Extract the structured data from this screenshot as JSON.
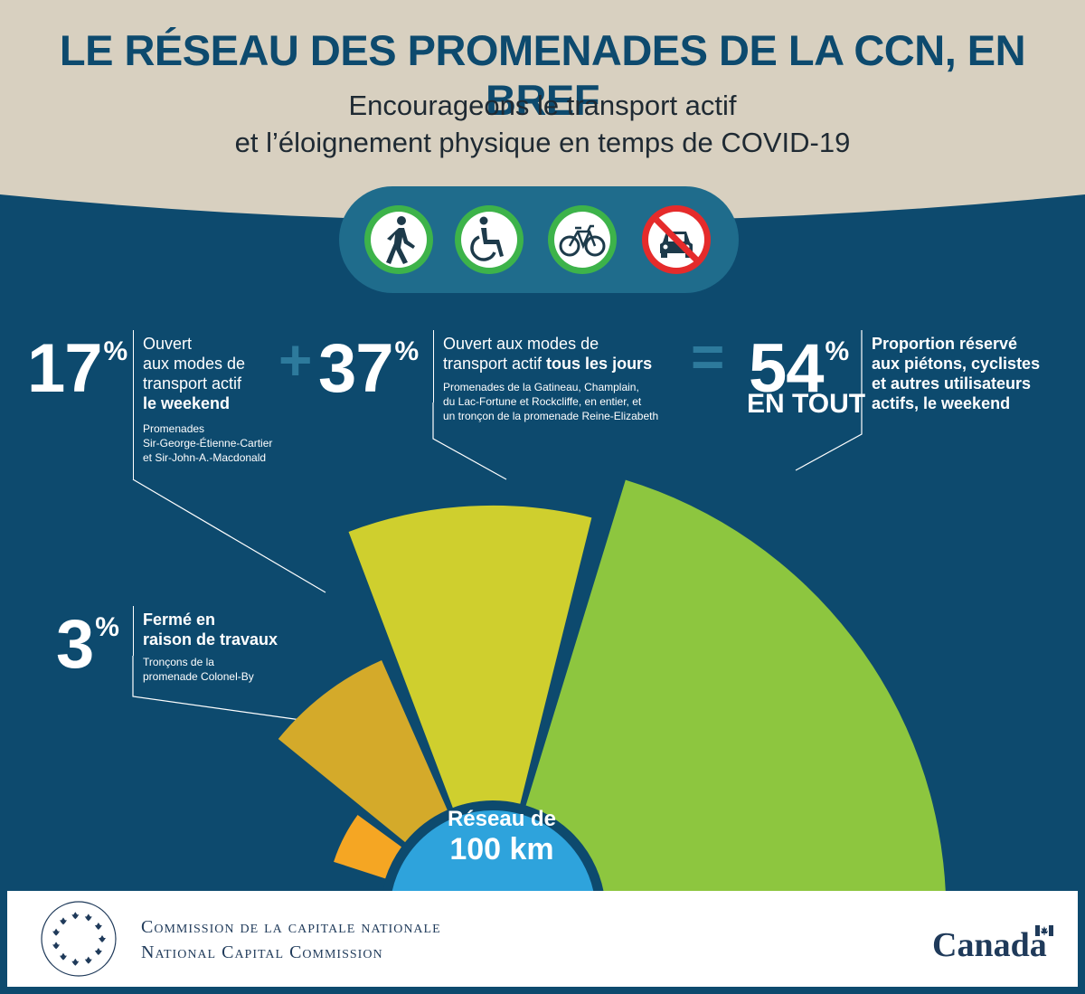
{
  "header": {
    "title": "LE RÉSEAU DES PROMENADES DE LA CCN, EN BREF",
    "subtitle_lines": [
      "Encourageons le transport actif",
      "et l’éloignement physique en temps de COVID-19"
    ]
  },
  "icons": [
    "pedestrian-icon",
    "wheelchair-icon",
    "bicycle-icon",
    "no-car-icon"
  ],
  "colors": {
    "background": "#0d4a6e",
    "header_band": "#d8d0c0",
    "closed": "#f5a623",
    "weekend": "#d4aa2a",
    "daily": "#cfcf2e",
    "total": "#8dc63f",
    "hub": "#2ea3dc"
  },
  "stats": {
    "closed": {
      "value": "3",
      "unit": "%",
      "line1": "Fermé en",
      "line2": "raison de travaux",
      "detail_lines": [
        "Tronçons de la",
        "promenade Colonel-By"
      ]
    },
    "weekend": {
      "value": "17",
      "unit": "%",
      "line1": "Ouvert",
      "line2": "aux modes de",
      "line3": "transport actif",
      "line4_bold": "le weekend",
      "detail_lines": [
        "Promenades",
        "Sir-George-Étienne-Cartier",
        "et Sir-John-A.-Macdonald"
      ]
    },
    "daily": {
      "value": "37",
      "unit": "%",
      "line1": "Ouvert aux modes de",
      "line2_plain": "transport actif ",
      "line2_bold": "tous les jours",
      "detail_lines": [
        "Promenades de la Gatineau, Champlain,",
        "du Lac-Fortune et Rockcliffe, en entier, et",
        "un tronçon de la promenade Reine-Elizabeth"
      ]
    },
    "total": {
      "value": "54",
      "unit": "%",
      "subtitle": "EN TOUT",
      "lines": [
        "Proportion réservé",
        "aux piétons, cyclistes",
        "et autres utilisateurs",
        "actifs, le weekend"
      ]
    },
    "plus": "+",
    "equals": "="
  },
  "hub": {
    "line1": "Réseau de",
    "line2": "100 km"
  },
  "footer": {
    "org_fr": "Commission de la capitale nationale",
    "org_en": "National Capital Commission",
    "canada": "Canada"
  },
  "chart_data": {
    "type": "pie",
    "title": "LE RÉSEAU DES PROMENADES DE LA CCN, EN BREF",
    "total_label": "Réseau de 100 km",
    "slices": [
      {
        "label": "Fermé en raison de travaux",
        "value": 3,
        "color": "#f5a623"
      },
      {
        "label": "Ouvert aux modes de transport actif le weekend",
        "value": 17,
        "color": "#d4aa2a"
      },
      {
        "label": "Ouvert aux modes de transport actif tous les jours",
        "value": 37,
        "color": "#cfcf2e"
      },
      {
        "label": "Proportion réservé aux piétons, cyclistes et autres utilisateurs actifs, le weekend",
        "value": 54,
        "color": "#8dc63f"
      }
    ]
  }
}
